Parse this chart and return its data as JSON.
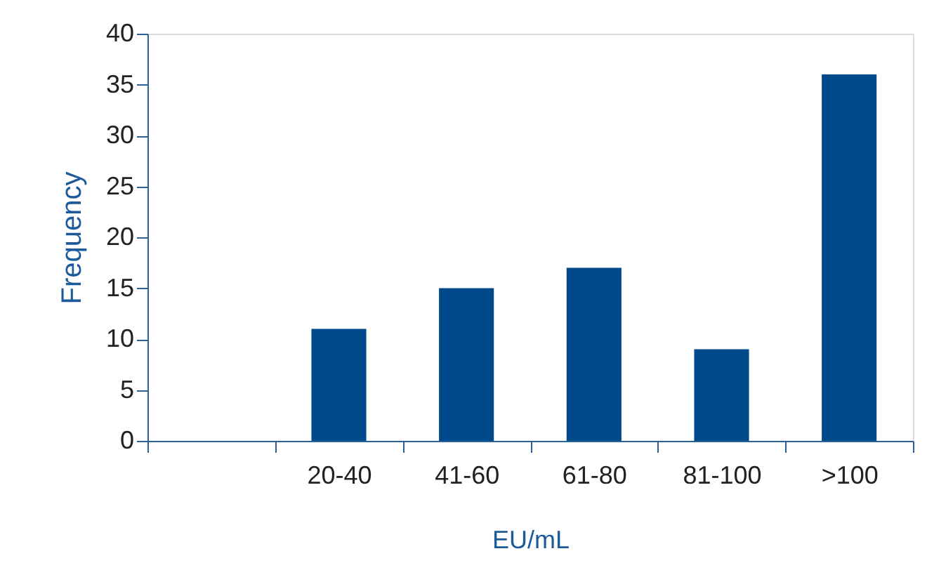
{
  "chart_data": {
    "type": "bar",
    "xlabel": "EU/mL",
    "ylabel": "Frequency",
    "categories": [
      null,
      "20-40",
      "41-60",
      "61-80",
      "81-100",
      ">100"
    ],
    "values": [
      null,
      11,
      15,
      17,
      9,
      36
    ],
    "color": "#004a8c",
    "ylim": [
      0,
      40
    ],
    "yticks": [
      0,
      5,
      10,
      15,
      20,
      25,
      30,
      35,
      40
    ],
    "grid": false
  }
}
